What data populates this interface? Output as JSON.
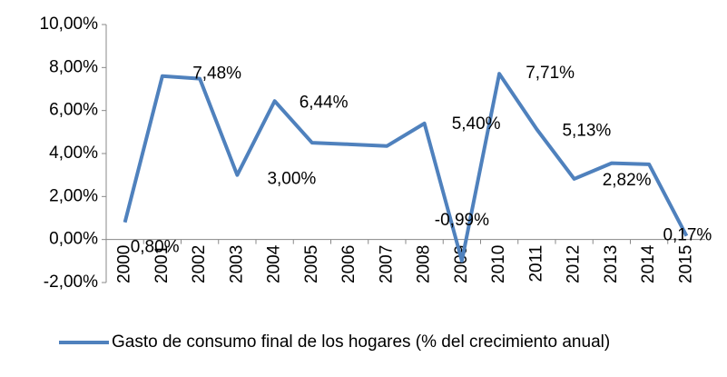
{
  "chart_data": {
    "type": "line",
    "categories": [
      "2000",
      "2001",
      "2002",
      "2003",
      "2004",
      "2005",
      "2006",
      "2007",
      "2008",
      "2009",
      "2010",
      "2011",
      "2012",
      "2013",
      "2014",
      "2015"
    ],
    "series": [
      {
        "name": "Gasto de consumo final de los hogares (% del crecimiento anual)",
        "color": "#4f81bd",
        "values": [
          0.8,
          7.6,
          7.48,
          3.0,
          6.44,
          4.5,
          4.43,
          4.35,
          5.4,
          -0.99,
          7.71,
          5.13,
          2.82,
          3.55,
          3.5,
          0.17
        ],
        "value_labels": [
          "0,80%",
          null,
          "7,48%",
          "3,00%",
          "6,44%",
          null,
          null,
          null,
          "5,40%",
          "-0,99%",
          "7,71%",
          "5,13%",
          "2,82%",
          null,
          null,
          "0,17%"
        ]
      }
    ],
    "ylim": [
      -2,
      10
    ],
    "yticks": [
      {
        "value": -2,
        "label": "-2,00%"
      },
      {
        "value": 0,
        "label": "0,00%"
      },
      {
        "value": 2,
        "label": "2,00%"
      },
      {
        "value": 4,
        "label": "4,00%"
      },
      {
        "value": 6,
        "label": "6,00%"
      },
      {
        "value": 8,
        "label": "8,00%"
      },
      {
        "value": 10,
        "label": "10,00%"
      }
    ],
    "legend": "bottom"
  }
}
